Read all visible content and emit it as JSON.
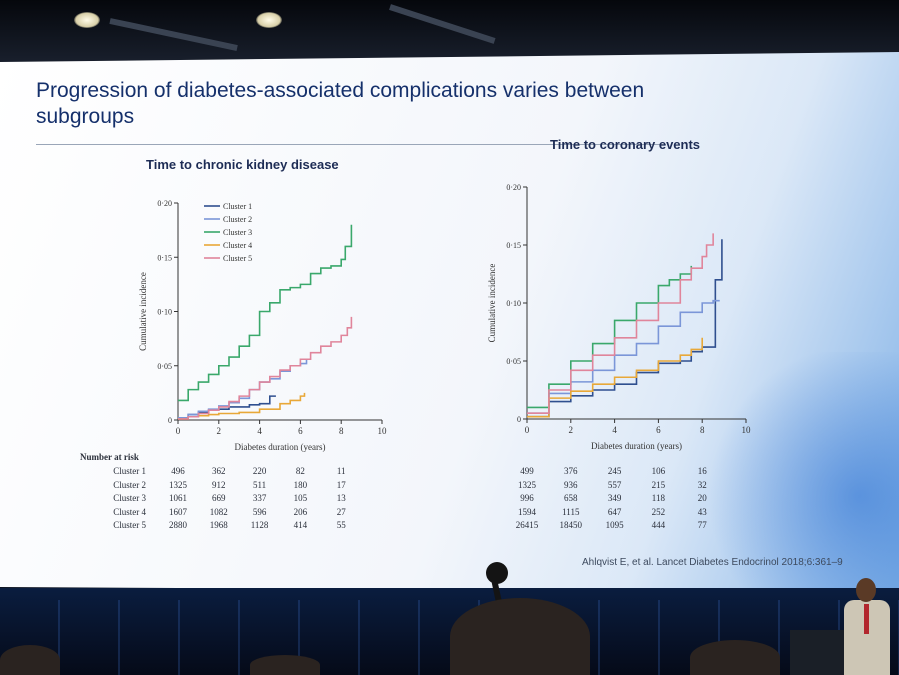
{
  "slide": {
    "title": "Progression of diabetes-associated complications varies between subgroups",
    "citation": "Ahlqvist E, et al. Lancet Diabetes Endocrinol 2018;6:361–9"
  },
  "colors": {
    "cluster1": "#2f4f8f",
    "cluster2": "#7b96d8",
    "cluster3": "#3aa86b",
    "cluster4": "#e8a838",
    "cluster5": "#e0859b"
  },
  "chart_data": [
    {
      "type": "line",
      "title": "Time to chronic kidney disease",
      "xlabel": "Diabetes duration (years)",
      "ylabel": "Cumulative incidence",
      "xlim": [
        0,
        10
      ],
      "ylim": [
        0,
        0.2
      ],
      "xticks": [
        "0",
        "2",
        "4",
        "6",
        "8",
        "10"
      ],
      "yticks": [
        "0",
        "0·05",
        "0·10",
        "0·15",
        "0·20"
      ],
      "legend_placement": "top-left",
      "series": [
        {
          "name": "Cluster 1",
          "color_key": "cluster1",
          "points": [
            [
              0,
              0.002
            ],
            [
              0.5,
              0.005
            ],
            [
              1,
              0.007
            ],
            [
              1.5,
              0.009
            ],
            [
              2,
              0.01
            ],
            [
              2.5,
              0.012
            ],
            [
              3,
              0.012
            ],
            [
              3.5,
              0.014
            ],
            [
              4,
              0.015
            ],
            [
              4.5,
              0.022
            ],
            [
              4.8,
              0.022
            ]
          ]
        },
        {
          "name": "Cluster 2",
          "color_key": "cluster2",
          "points": [
            [
              0,
              0.002
            ],
            [
              0.5,
              0.005
            ],
            [
              1,
              0.008
            ],
            [
              1.5,
              0.01
            ],
            [
              2,
              0.013
            ],
            [
              2.5,
              0.016
            ],
            [
              3,
              0.02
            ],
            [
              3.5,
              0.028
            ],
            [
              4,
              0.035
            ],
            [
              4.5,
              0.038
            ],
            [
              5,
              0.045
            ],
            [
              5.5,
              0.05
            ],
            [
              6,
              0.052
            ],
            [
              6.3,
              0.056
            ]
          ]
        },
        {
          "name": "Cluster 3",
          "color_key": "cluster3",
          "points": [
            [
              0,
              0.018
            ],
            [
              0.5,
              0.028
            ],
            [
              1,
              0.035
            ],
            [
              1.5,
              0.042
            ],
            [
              2,
              0.05
            ],
            [
              2.5,
              0.058
            ],
            [
              3,
              0.068
            ],
            [
              3.5,
              0.078
            ],
            [
              4,
              0.1
            ],
            [
              4.5,
              0.108
            ],
            [
              5,
              0.12
            ],
            [
              5.5,
              0.122
            ],
            [
              6,
              0.125
            ],
            [
              6.5,
              0.135
            ],
            [
              7,
              0.14
            ],
            [
              7.5,
              0.142
            ],
            [
              8,
              0.148
            ],
            [
              8.2,
              0.16
            ],
            [
              8.5,
              0.18
            ]
          ]
        },
        {
          "name": "Cluster 4",
          "color_key": "cluster4",
          "points": [
            [
              0,
              0.001
            ],
            [
              0.5,
              0.003
            ],
            [
              1,
              0.004
            ],
            [
              1.5,
              0.005
            ],
            [
              2,
              0.006
            ],
            [
              3,
              0.007
            ],
            [
              4,
              0.01
            ],
            [
              5,
              0.015
            ],
            [
              5.5,
              0.018
            ],
            [
              6,
              0.022
            ],
            [
              6.2,
              0.025
            ]
          ]
        },
        {
          "name": "Cluster 5",
          "color_key": "cluster5",
          "points": [
            [
              0,
              0.001
            ],
            [
              0.5,
              0.003
            ],
            [
              1,
              0.006
            ],
            [
              1.5,
              0.009
            ],
            [
              2,
              0.012
            ],
            [
              2.5,
              0.017
            ],
            [
              3,
              0.022
            ],
            [
              3.5,
              0.028
            ],
            [
              4,
              0.035
            ],
            [
              4.5,
              0.04
            ],
            [
              5,
              0.046
            ],
            [
              5.5,
              0.05
            ],
            [
              6,
              0.056
            ],
            [
              6.5,
              0.062
            ],
            [
              7,
              0.068
            ],
            [
              7.5,
              0.072
            ],
            [
              8,
              0.078
            ],
            [
              8.3,
              0.085
            ],
            [
              8.5,
              0.095
            ]
          ]
        }
      ],
      "number_at_risk": {
        "label": "Number at risk",
        "rows": [
          {
            "name": "Cluster 1",
            "values": [
              "496",
              "362",
              "220",
              "82",
              "11"
            ]
          },
          {
            "name": "Cluster 2",
            "values": [
              "1325",
              "912",
              "511",
              "180",
              "17"
            ]
          },
          {
            "name": "Cluster 3",
            "values": [
              "1061",
              "669",
              "337",
              "105",
              "13"
            ]
          },
          {
            "name": "Cluster 4",
            "values": [
              "1607",
              "1082",
              "596",
              "206",
              "27"
            ]
          },
          {
            "name": "Cluster 5",
            "values": [
              "2880",
              "1968",
              "1128",
              "414",
              "55"
            ]
          }
        ]
      }
    },
    {
      "type": "line",
      "title": "Time to coronary events",
      "xlabel": "Diabetes duration (years)",
      "ylabel": "Cumulative incidence",
      "xlim": [
        0,
        10
      ],
      "ylim": [
        0,
        0.2
      ],
      "xticks": [
        "0",
        "2",
        "4",
        "6",
        "8",
        "10"
      ],
      "yticks": [
        "0",
        "0·05",
        "0·10",
        "0·15",
        "0·20"
      ],
      "series": [
        {
          "color_key": "cluster1",
          "points": [
            [
              0,
              0.002
            ],
            [
              1,
              0.015
            ],
            [
              2,
              0.02
            ],
            [
              3,
              0.025
            ],
            [
              4,
              0.03
            ],
            [
              5,
              0.04
            ],
            [
              6,
              0.048
            ],
            [
              7,
              0.05
            ],
            [
              7.5,
              0.058
            ],
            [
              8,
              0.062
            ],
            [
              8.5,
              0.062
            ],
            [
              8.6,
              0.12
            ],
            [
              8.9,
              0.155
            ]
          ]
        },
        {
          "color_key": "cluster2",
          "points": [
            [
              0,
              0.005
            ],
            [
              1,
              0.022
            ],
            [
              2,
              0.032
            ],
            [
              3,
              0.042
            ],
            [
              4,
              0.055
            ],
            [
              5,
              0.065
            ],
            [
              6,
              0.08
            ],
            [
              7,
              0.092
            ],
            [
              8,
              0.1
            ],
            [
              8.5,
              0.102
            ],
            [
              8.8,
              0.102
            ]
          ]
        },
        {
          "color_key": "cluster3",
          "points": [
            [
              0,
              0.01
            ],
            [
              1,
              0.03
            ],
            [
              2,
              0.05
            ],
            [
              3,
              0.065
            ],
            [
              4,
              0.085
            ],
            [
              5,
              0.1
            ],
            [
              6,
              0.115
            ],
            [
              6.5,
              0.12
            ],
            [
              7,
              0.125
            ],
            [
              7.5,
              0.132
            ]
          ]
        },
        {
          "color_key": "cluster4",
          "points": [
            [
              0,
              0.002
            ],
            [
              1,
              0.018
            ],
            [
              2,
              0.024
            ],
            [
              3,
              0.03
            ],
            [
              4,
              0.036
            ],
            [
              5,
              0.042
            ],
            [
              6,
              0.05
            ],
            [
              7,
              0.055
            ],
            [
              7.5,
              0.06
            ],
            [
              8,
              0.07
            ]
          ]
        },
        {
          "color_key": "cluster5",
          "points": [
            [
              0,
              0.005
            ],
            [
              1,
              0.025
            ],
            [
              2,
              0.042
            ],
            [
              3,
              0.055
            ],
            [
              4,
              0.07
            ],
            [
              5,
              0.085
            ],
            [
              6,
              0.1
            ],
            [
              7,
              0.12
            ],
            [
              7.5,
              0.13
            ],
            [
              8,
              0.14
            ],
            [
              8.2,
              0.15
            ],
            [
              8.5,
              0.16
            ]
          ]
        }
      ],
      "number_at_risk": {
        "rows": [
          {
            "values": [
              "499",
              "376",
              "245",
              "106",
              "16"
            ]
          },
          {
            "values": [
              "1325",
              "936",
              "557",
              "215",
              "32"
            ]
          },
          {
            "values": [
              "996",
              "658",
              "349",
              "118",
              "20"
            ]
          },
          {
            "values": [
              "1594",
              "1115",
              "647",
              "252",
              "43"
            ]
          },
          {
            "values": [
              "26415",
              "18450",
              "1095",
              "444",
              "77"
            ]
          }
        ]
      }
    }
  ]
}
